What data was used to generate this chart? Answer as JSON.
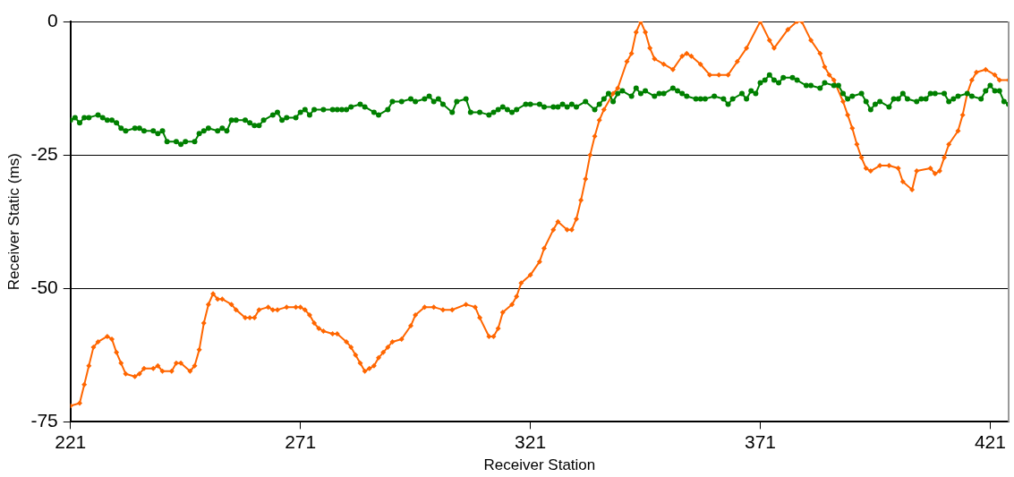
{
  "chart_data": {
    "type": "line",
    "xlabel": "Receiver Station",
    "ylabel": "Receiver Static (ms)",
    "xlim": [
      221,
      425
    ],
    "xticks": [
      221,
      271,
      321,
      371,
      421
    ],
    "ylim": [
      -75,
      0
    ],
    "yticks": [
      0,
      -25,
      -50,
      -75
    ],
    "grid": "y",
    "legend": false,
    "series": [
      {
        "color": "#008000",
        "marker": "circle",
        "x": [
          221,
          222,
          223,
          224,
          225,
          227,
          228,
          229,
          230,
          231,
          232,
          233,
          235,
          236,
          237,
          239,
          240,
          241,
          242,
          244,
          245,
          246,
          248,
          249,
          250,
          251,
          253,
          254,
          255,
          256,
          257,
          259,
          260,
          261,
          262,
          263,
          265,
          266,
          267,
          268,
          270,
          271,
          272,
          273,
          274,
          276,
          278,
          279,
          280,
          281,
          282,
          284,
          285,
          287,
          288,
          290,
          291,
          293,
          295,
          296,
          298,
          299,
          300,
          301,
          302,
          304,
          305,
          307,
          308,
          310,
          312,
          313,
          314,
          315,
          316,
          317,
          318,
          320,
          321,
          323,
          324,
          326,
          327,
          328,
          329,
          330,
          331,
          333,
          335,
          336,
          337,
          338,
          339,
          340,
          341,
          343,
          344,
          345,
          346,
          348,
          349,
          350,
          352,
          353,
          354,
          355,
          357,
          358,
          359,
          361,
          363,
          364,
          365,
          367,
          368,
          369,
          370,
          371,
          372,
          373,
          374,
          375,
          376,
          378,
          379,
          381,
          382,
          384,
          385,
          387,
          388,
          389,
          390,
          391,
          393,
          394,
          395,
          396,
          397,
          399,
          400,
          401,
          402,
          403,
          405,
          406,
          407,
          408,
          409,
          411,
          412,
          413,
          414,
          416,
          417,
          419,
          420,
          421,
          422,
          423,
          424,
          425
        ],
        "values": [
          -18.5,
          -18,
          -19,
          -18,
          -18,
          -17.5,
          -18,
          -18.5,
          -18.5,
          -19,
          -20,
          -20.5,
          -20,
          -20,
          -20.5,
          -20.5,
          -21,
          -20.5,
          -22.5,
          -22.5,
          -23,
          -22.5,
          -22.5,
          -21,
          -20.5,
          -20,
          -20.5,
          -20,
          -20.5,
          -18.5,
          -18.5,
          -18.5,
          -19,
          -19.5,
          -19.5,
          -18.5,
          -17.5,
          -17,
          -18.5,
          -18,
          -18,
          -17,
          -16.5,
          -17.5,
          -16.5,
          -16.5,
          -16.5,
          -16.5,
          -16.5,
          -16.5,
          -16,
          -15.5,
          -16,
          -17,
          -17.5,
          -16.5,
          -15,
          -15,
          -14.5,
          -15,
          -14.5,
          -14,
          -15,
          -14.5,
          -15.5,
          -17,
          -15,
          -14.5,
          -17,
          -17,
          -17.5,
          -17,
          -16.5,
          -16,
          -16.5,
          -17,
          -16.5,
          -15.5,
          -15.5,
          -15.5,
          -16,
          -16,
          -16,
          -15.5,
          -16,
          -15.5,
          -16,
          -15,
          -16.5,
          -15.5,
          -14.5,
          -13.5,
          -15,
          -13.5,
          -13,
          -14,
          -12.5,
          -13.5,
          -13,
          -14,
          -13.5,
          -13.5,
          -12.5,
          -13,
          -13.5,
          -14,
          -14.5,
          -14.5,
          -14.5,
          -14,
          -14.5,
          -15.5,
          -14.5,
          -13.5,
          -14.5,
          -13,
          -13.5,
          -11.5,
          -11,
          -10,
          -11,
          -11.5,
          -10.5,
          -10.5,
          -11,
          -12,
          -12,
          -12.5,
          -11.5,
          -12,
          -12,
          -13.5,
          -14.5,
          -14,
          -13.5,
          -15,
          -16.5,
          -15.5,
          -15,
          -16,
          -14.5,
          -14.5,
          -13.5,
          -14.5,
          -15,
          -14.5,
          -14.5,
          -13.5,
          -13.5,
          -13.5,
          -15,
          -14.5,
          -14,
          -13.5,
          -14,
          -14.5,
          -13,
          -12,
          -13,
          -13,
          -15,
          -15.5
        ]
      },
      {
        "color": "#ff6600",
        "marker": "diamond",
        "x": [
          221,
          223,
          224,
          225,
          226,
          227,
          229,
          230,
          231,
          232,
          233,
          235,
          236,
          237,
          239,
          240,
          241,
          243,
          244,
          245,
          247,
          248,
          249,
          250,
          251,
          252,
          253,
          254,
          256,
          257,
          259,
          260,
          261,
          262,
          264,
          265,
          266,
          268,
          270,
          271,
          272,
          273,
          274,
          275,
          276,
          278,
          279,
          281,
          282,
          283,
          284,
          285,
          286,
          287,
          288,
          289,
          290,
          291,
          293,
          295,
          296,
          298,
          300,
          302,
          304,
          307,
          309,
          310,
          312,
          313,
          314,
          315,
          317,
          318,
          319,
          321,
          323,
          324,
          326,
          327,
          329,
          330,
          331,
          332,
          333,
          334,
          335,
          336,
          337,
          339,
          340,
          342,
          343,
          344,
          345,
          346,
          347,
          348,
          350,
          352,
          354,
          355,
          356,
          358,
          360,
          362,
          364,
          366,
          368,
          371,
          373,
          374,
          377,
          379,
          380,
          382,
          384,
          385,
          386,
          387,
          389,
          390,
          391,
          392,
          393,
          394,
          395,
          397,
          399,
          401,
          402,
          404,
          405,
          408,
          409,
          410,
          411,
          412,
          414,
          415,
          416,
          417,
          418,
          420,
          422,
          423,
          425
        ],
        "values": [
          -72,
          -71.5,
          -68,
          -64.5,
          -61,
          -60,
          -59,
          -59.5,
          -62,
          -64,
          -66,
          -66.5,
          -66,
          -65,
          -65,
          -64.5,
          -65.5,
          -65.5,
          -64,
          -64,
          -65.5,
          -64.5,
          -61.5,
          -56.5,
          -53,
          -51,
          -52,
          -52,
          -53,
          -54,
          -55.5,
          -55.5,
          -55.5,
          -54,
          -53.5,
          -54,
          -54,
          -53.5,
          -53.5,
          -53.5,
          -54,
          -55,
          -56.5,
          -57.5,
          -58,
          -58.5,
          -58.5,
          -60,
          -61,
          -62.5,
          -64,
          -65.5,
          -65,
          -64.5,
          -63,
          -62,
          -61,
          -60,
          -59.5,
          -57,
          -55,
          -53.5,
          -53.5,
          -54,
          -54,
          -53,
          -53.5,
          -55.5,
          -59,
          -59,
          -57.5,
          -54.5,
          -53,
          -51.5,
          -49,
          -47.5,
          -45,
          -42.5,
          -39,
          -37.5,
          -39,
          -39,
          -37,
          -33.5,
          -29.5,
          -25,
          -21.5,
          -18.5,
          -16.5,
          -13.5,
          -12.5,
          -7.5,
          -6,
          -2,
          0,
          -2,
          -5,
          -7,
          -8,
          -9,
          -6.5,
          -6,
          -6.5,
          -8,
          -10,
          -10,
          -10,
          -7.5,
          -5,
          0,
          -3.5,
          -5,
          -1.5,
          0,
          0,
          -3.5,
          -6,
          -8.5,
          -10,
          -11,
          -15,
          -17.5,
          -20,
          -23,
          -25.5,
          -27.5,
          -28,
          -27,
          -27,
          -27.5,
          -30,
          -31.5,
          -28,
          -27.5,
          -28.5,
          -28,
          -25.5,
          -23,
          -20.5,
          -17.5,
          -13.5,
          -11,
          -9.5,
          -9,
          -10,
          -11,
          -11
        ]
      }
    ]
  }
}
